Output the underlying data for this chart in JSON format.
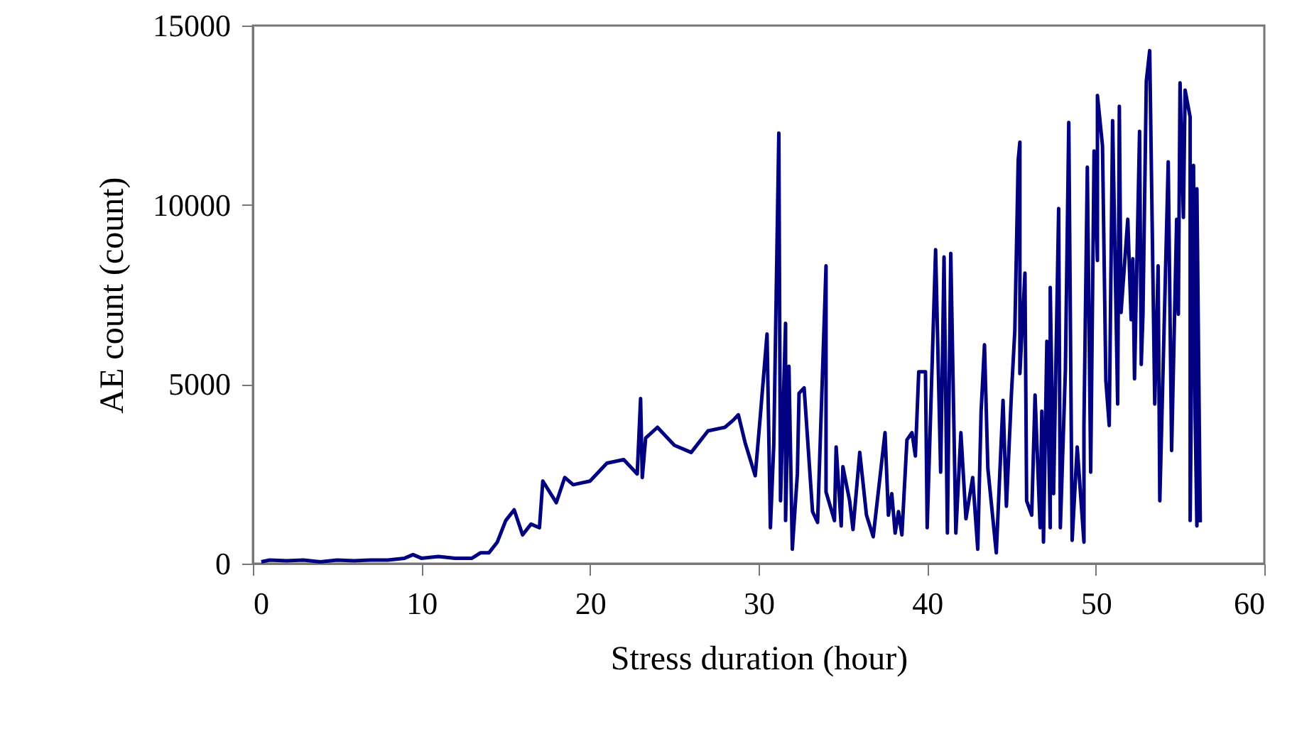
{
  "chart_data": {
    "type": "line",
    "xlabel": "Stress duration (hour)",
    "ylabel": "AE count (count)",
    "xlim": [
      0,
      60
    ],
    "xticks": [
      0,
      10,
      20,
      30,
      40,
      50,
      60
    ],
    "ylim": [
      0,
      15000
    ],
    "yticks": [
      0,
      5000,
      10000,
      15000
    ],
    "grid": false,
    "series": [
      {
        "color": "#000080",
        "x": [
          0.5,
          1,
          2,
          3,
          4,
          5,
          6,
          7,
          8,
          9,
          9.5,
          10,
          11,
          12,
          13,
          13.5,
          14,
          14.5,
          15,
          15.5,
          16,
          16.5,
          17,
          17.2,
          18,
          18.5,
          19,
          20,
          21,
          22,
          22.8,
          23,
          23.1,
          23.3,
          24,
          25,
          26,
          27,
          28,
          28.5,
          28.8,
          29.2,
          29.8,
          30.1,
          30.5,
          30.7,
          30.9,
          31.2,
          31.3,
          31.6,
          31.6,
          31.8,
          32.0,
          32.3,
          32.4,
          32.7,
          33.2,
          33.5,
          34.0,
          34.0,
          34.5,
          34.6,
          34.9,
          35.0,
          35.4,
          35.6,
          36.0,
          36.4,
          36.8,
          37.5,
          37.7,
          37.9,
          38.1,
          38.3,
          38.5,
          38.8,
          39.1,
          39.3,
          39.5,
          39.9,
          40.0,
          40.5,
          40.8,
          41.0,
          41.2,
          41.4,
          41.7,
          42.0,
          42.3,
          42.7,
          43.0,
          43.2,
          43.4,
          43.6,
          44.1,
          44.5,
          44.7,
          45.0,
          45.2,
          45.4,
          45.5,
          45.5,
          45.8,
          45.9,
          46.2,
          46.4,
          46.7,
          46.8,
          46.9,
          47.1,
          47.3,
          47.3,
          47.5,
          47.8,
          47.9,
          48.2,
          48.4,
          48.6,
          48.9,
          49.3,
          49.3,
          49.5,
          49.7,
          49.9,
          50.1,
          50.1,
          50.4,
          50.6,
          50.8,
          51.0,
          51.3,
          51.4,
          51.5,
          51.9,
          52.1,
          52.2,
          52.3,
          52.6,
          52.7,
          52.8,
          53.0,
          53.2,
          53.5,
          53.7,
          53.8,
          54.3,
          54.5,
          54.8,
          54.9,
          55.0,
          55.2,
          55.3,
          55.6,
          55.6,
          55.8,
          55.9,
          56.0,
          56.0,
          56.2
        ],
        "values": [
          50,
          100,
          80,
          100,
          50,
          100,
          80,
          100,
          100,
          150,
          250,
          150,
          200,
          150,
          150,
          300,
          300,
          600,
          1200,
          1500,
          800,
          1100,
          1000,
          2300,
          1700,
          2400,
          2200,
          2300,
          2800,
          2900,
          2500,
          4600,
          2400,
          3500,
          3800,
          3300,
          3100,
          3700,
          3800,
          4000,
          4150,
          3370,
          2450,
          4100,
          6400,
          1000,
          3300,
          12000,
          1750,
          6700,
          1200,
          5500,
          400,
          2500,
          4750,
          4900,
          1450,
          1150,
          8300,
          2000,
          1200,
          3250,
          1050,
          2700,
          1750,
          950,
          3100,
          1350,
          750,
          3650,
          1350,
          1950,
          850,
          1450,
          800,
          3450,
          3650,
          3000,
          5350,
          5350,
          1000,
          8750,
          2550,
          8550,
          850,
          8650,
          850,
          3650,
          1250,
          2400,
          400,
          4250,
          6100,
          2650,
          300,
          4550,
          1600,
          4750,
          6500,
          11250,
          11750,
          5300,
          8100,
          1750,
          1350,
          4700,
          1000,
          4250,
          600,
          6200,
          1000,
          7700,
          1950,
          9900,
          1000,
          5400,
          12300,
          650,
          3250,
          600,
          3850,
          11050,
          2550,
          11500,
          8450,
          13050,
          11650,
          5100,
          3850,
          12350,
          4450,
          12750,
          7000,
          9600,
          6800,
          8500,
          5150,
          12050,
          5550,
          6950,
          13450,
          14300,
          4450,
          8300,
          1750,
          11200,
          3150,
          9600,
          6950,
          13400,
          9650,
          13200,
          12450,
          1200,
          11100,
          4050,
          1050,
          10450,
          1150
        ]
      }
    ]
  }
}
